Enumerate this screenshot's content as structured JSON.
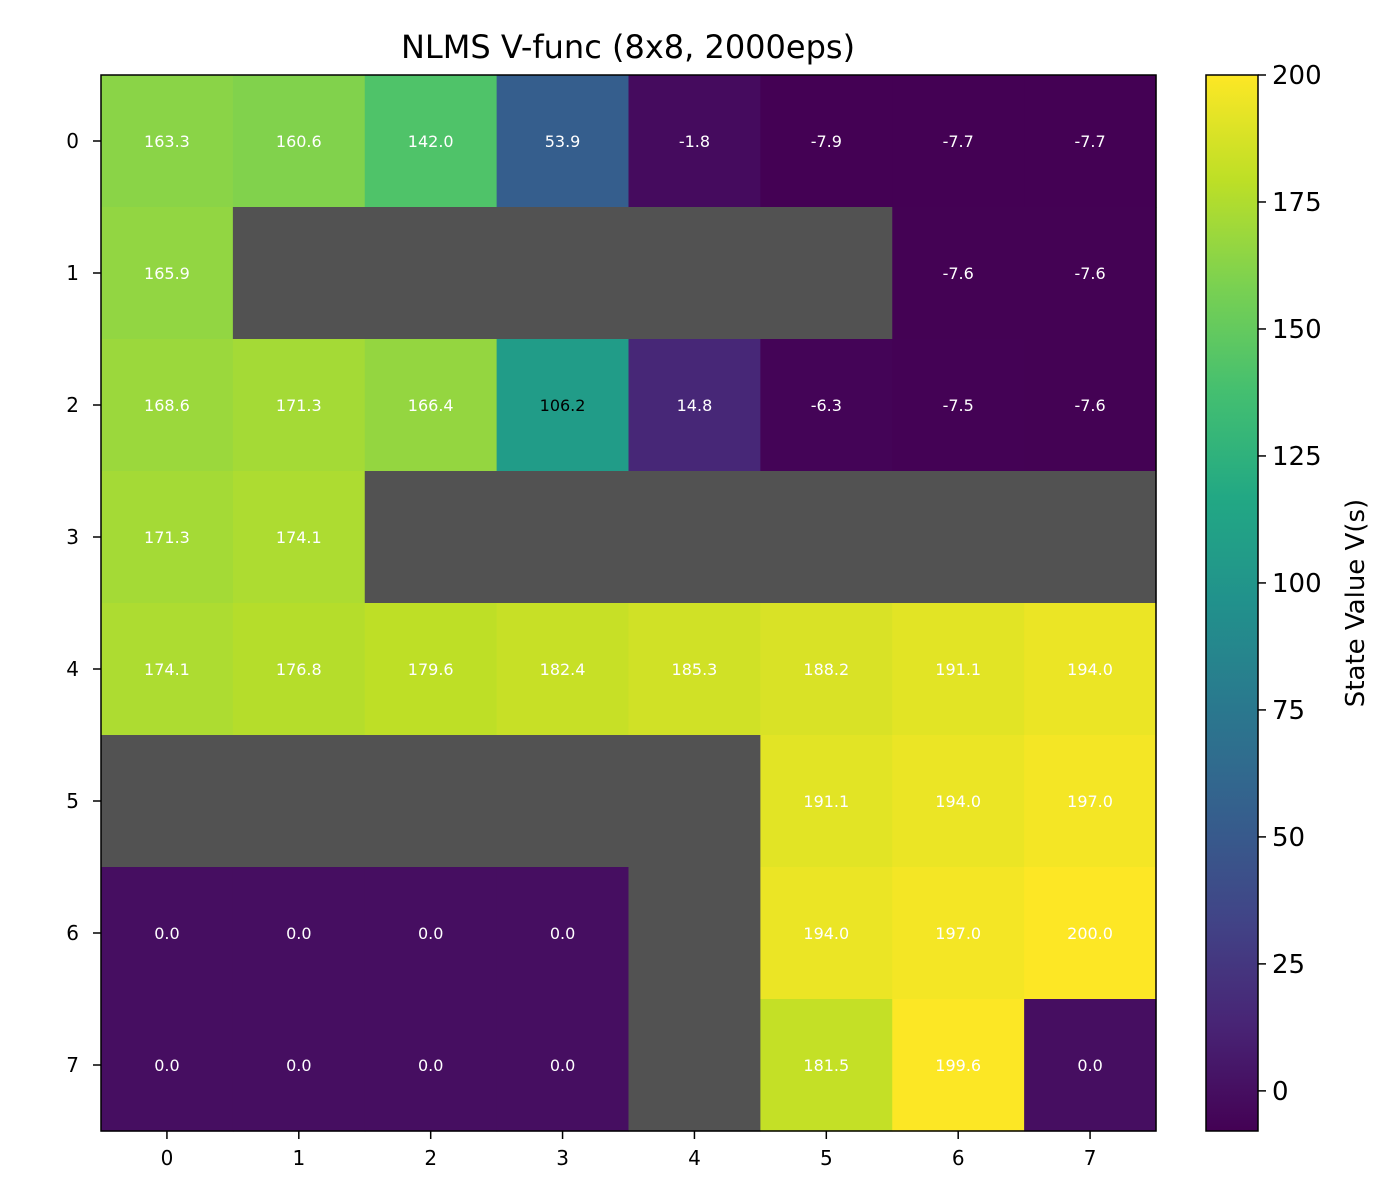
{
  "chart_data": {
    "type": "heatmap",
    "title": "NLMS V-func (8x8, 2000eps)",
    "x_categories": [
      "0",
      "1",
      "2",
      "3",
      "4",
      "5",
      "6",
      "7"
    ],
    "y_categories": [
      "0",
      "1",
      "2",
      "3",
      "4",
      "5",
      "6",
      "7"
    ],
    "values": [
      [
        163.3,
        160.6,
        142.0,
        53.9,
        -1.8,
        -7.9,
        -7.7,
        -7.7
      ],
      [
        165.9,
        null,
        null,
        null,
        null,
        null,
        -7.6,
        -7.6
      ],
      [
        168.6,
        171.3,
        166.4,
        106.2,
        14.8,
        -6.3,
        -7.5,
        -7.6
      ],
      [
        171.3,
        174.1,
        null,
        null,
        null,
        null,
        null,
        null
      ],
      [
        174.1,
        176.8,
        179.6,
        182.4,
        185.3,
        188.2,
        191.1,
        194.0
      ],
      [
        null,
        null,
        null,
        null,
        null,
        191.1,
        194.0,
        197.0
      ],
      [
        0.0,
        0.0,
        0.0,
        0.0,
        null,
        194.0,
        197.0,
        200.0
      ],
      [
        0.0,
        0.0,
        0.0,
        0.0,
        null,
        181.5,
        199.6,
        0.0
      ]
    ],
    "labels": [
      [
        "163.3",
        "160.6",
        "142.0",
        "53.9",
        "-1.8",
        "-7.9",
        "-7.7",
        "-7.7"
      ],
      [
        "165.9",
        "",
        "",
        "",
        "",
        "",
        "-7.6",
        "-7.6"
      ],
      [
        "168.6",
        "171.3",
        "166.4",
        "106.2",
        "14.8",
        "-6.3",
        "-7.5",
        "-7.6"
      ],
      [
        "171.3",
        "174.1",
        "",
        "",
        "",
        "",
        "",
        ""
      ],
      [
        "174.1",
        "176.8",
        "179.6",
        "182.4",
        "185.3",
        "188.2",
        "191.1",
        "194.0"
      ],
      [
        "",
        "",
        "",
        "",
        "",
        "191.1",
        "194.0",
        "197.0"
      ],
      [
        "0.0",
        "0.0",
        "0.0",
        "0.0",
        "",
        "194.0",
        "197.0",
        "200.0"
      ],
      [
        "0.0",
        "0.0",
        "0.0",
        "0.0",
        "",
        "181.5",
        "199.6",
        "0.0"
      ]
    ],
    "wall_color": "#525252",
    "colormap": "viridis",
    "vmin": -7.9,
    "vmax": 200.0,
    "colorbar": {
      "label": "State Value V(s)",
      "ticks": [
        0,
        25,
        50,
        75,
        100,
        125,
        150,
        175,
        200
      ],
      "tick_labels": [
        "0",
        "25",
        "50",
        "75",
        "100",
        "125",
        "150",
        "175",
        "200"
      ]
    },
    "xlabel": "",
    "ylabel": ""
  }
}
